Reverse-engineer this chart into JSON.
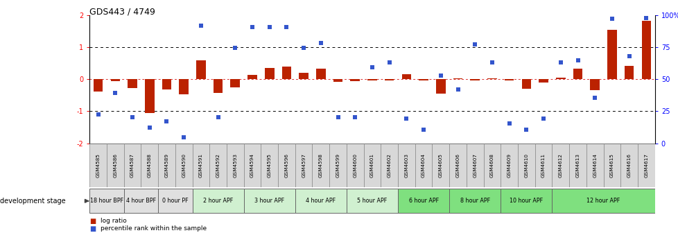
{
  "title": "GDS443 / 4749",
  "samples": [
    "GSM4585",
    "GSM4586",
    "GSM4587",
    "GSM4588",
    "GSM4589",
    "GSM4590",
    "GSM4591",
    "GSM4592",
    "GSM4593",
    "GSM4594",
    "GSM4595",
    "GSM4596",
    "GSM4597",
    "GSM4598",
    "GSM4599",
    "GSM4600",
    "GSM4601",
    "GSM4602",
    "GSM4603",
    "GSM4604",
    "GSM4605",
    "GSM4606",
    "GSM4607",
    "GSM4608",
    "GSM4609",
    "GSM4610",
    "GSM4611",
    "GSM4612",
    "GSM4613",
    "GSM4614",
    "GSM4615",
    "GSM4616",
    "GSM4617"
  ],
  "log_ratio": [
    -0.38,
    -0.05,
    -0.28,
    -1.05,
    -0.32,
    -0.48,
    0.6,
    -0.42,
    -0.25,
    0.13,
    0.35,
    0.4,
    0.2,
    0.32,
    -0.08,
    -0.06,
    -0.04,
    -0.03,
    0.16,
    -0.04,
    -0.44,
    0.03,
    -0.03,
    0.02,
    -0.03,
    -0.3,
    -0.1,
    0.04,
    0.32,
    -0.34,
    1.55,
    0.42,
    1.82
  ],
  "percentile_left": [
    -1.1,
    -0.42,
    -1.18,
    -1.52,
    -1.32,
    -1.82,
    1.68,
    -1.18,
    0.98,
    1.62,
    1.62,
    1.62,
    0.98,
    1.12,
    -1.18,
    -1.18,
    0.38,
    0.52,
    -1.22,
    -1.58,
    0.12,
    -0.32,
    1.08,
    0.52,
    -1.38,
    -1.58,
    -1.22,
    0.52,
    0.58,
    -0.58,
    1.88,
    0.72,
    1.92
  ],
  "stage_groups": [
    {
      "label": "18 hour BPF",
      "start": 0,
      "end": 2,
      "color": "#e0e0e0"
    },
    {
      "label": "4 hour BPF",
      "start": 2,
      "end": 4,
      "color": "#e0e0e0"
    },
    {
      "label": "0 hour PF",
      "start": 4,
      "end": 6,
      "color": "#e0e0e0"
    },
    {
      "label": "2 hour APF",
      "start": 6,
      "end": 9,
      "color": "#d0f0d0"
    },
    {
      "label": "3 hour APF",
      "start": 9,
      "end": 12,
      "color": "#d0f0d0"
    },
    {
      "label": "4 hour APF",
      "start": 12,
      "end": 15,
      "color": "#d0f0d0"
    },
    {
      "label": "5 hour APF",
      "start": 15,
      "end": 18,
      "color": "#d0f0d0"
    },
    {
      "label": "6 hour APF",
      "start": 18,
      "end": 21,
      "color": "#7fe07f"
    },
    {
      "label": "8 hour APF",
      "start": 21,
      "end": 24,
      "color": "#7fe07f"
    },
    {
      "label": "10 hour APF",
      "start": 24,
      "end": 27,
      "color": "#7fe07f"
    },
    {
      "label": "12 hour APF",
      "start": 27,
      "end": 33,
      "color": "#7fe07f"
    }
  ],
  "bar_color": "#bb2200",
  "dot_color": "#3355cc",
  "ylim": [
    -2,
    2
  ],
  "bg_color": "#ffffff",
  "dotted_line_y": [
    1.0,
    -1.0
  ],
  "zero_line_color": "#dd3333",
  "left_yticks": [
    -2,
    -1,
    0,
    1,
    2
  ],
  "right_yticklabels": [
    "0",
    "25",
    "50",
    "75",
    "100%"
  ]
}
